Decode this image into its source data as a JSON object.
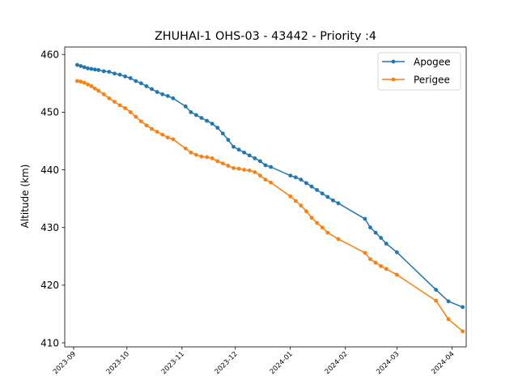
{
  "chart_data": {
    "type": "line",
    "title": "ZHUHAI-1 OHS-03 - 43442 - Priority :4",
    "xlabel": "",
    "ylabel": "Altitude (km)",
    "x_axis": {
      "type": "date",
      "range": [
        "2023-08-27",
        "2024-04-09"
      ],
      "ticks": [
        "2023-09",
        "2023-10",
        "2023-11",
        "2023-12",
        "2024-01",
        "2024-02",
        "2024-03",
        "2024-04"
      ]
    },
    "y_axis": {
      "range": [
        409.3,
        461.3
      ],
      "ticks": [
        410,
        420,
        430,
        440,
        450,
        460
      ]
    },
    "grid": false,
    "legend_position": "top-right",
    "series": [
      {
        "name": "Apogee",
        "color": "#1f77b4",
        "points": [
          [
            "2023-09-03",
            458.2
          ],
          [
            "2023-09-05",
            458.0
          ],
          [
            "2023-09-07",
            457.8
          ],
          [
            "2023-09-09",
            457.6
          ],
          [
            "2023-09-11",
            457.5
          ],
          [
            "2023-09-13",
            457.4
          ],
          [
            "2023-09-15",
            457.3
          ],
          [
            "2023-09-18",
            457.1
          ],
          [
            "2023-09-21",
            457.0
          ],
          [
            "2023-09-24",
            456.7
          ],
          [
            "2023-09-27",
            456.5
          ],
          [
            "2023-09-30",
            456.2
          ],
          [
            "2023-10-03",
            455.9
          ],
          [
            "2023-10-06",
            455.4
          ],
          [
            "2023-10-09",
            455.0
          ],
          [
            "2023-10-12",
            454.5
          ],
          [
            "2023-10-15",
            454.0
          ],
          [
            "2023-10-18",
            453.5
          ],
          [
            "2023-10-21",
            453.1
          ],
          [
            "2023-10-24",
            452.8
          ],
          [
            "2023-10-27",
            452.4
          ],
          [
            "2023-11-03",
            451.0
          ],
          [
            "2023-11-06",
            450.0
          ],
          [
            "2023-11-09",
            449.5
          ],
          [
            "2023-11-12",
            449.0
          ],
          [
            "2023-11-15",
            448.5
          ],
          [
            "2023-11-18",
            448.0
          ],
          [
            "2023-11-21",
            447.3
          ],
          [
            "2023-11-24",
            446.3
          ],
          [
            "2023-11-27",
            445.2
          ],
          [
            "2023-11-30",
            444.0
          ],
          [
            "2023-12-03",
            443.5
          ],
          [
            "2023-12-06",
            443.0
          ],
          [
            "2023-12-09",
            442.5
          ],
          [
            "2023-12-12",
            442.0
          ],
          [
            "2023-12-15",
            441.5
          ],
          [
            "2023-12-18",
            440.8
          ],
          [
            "2023-12-21",
            440.5
          ],
          [
            "2024-01-01",
            439.0
          ],
          [
            "2024-01-04",
            438.7
          ],
          [
            "2024-01-07",
            438.3
          ],
          [
            "2024-01-10",
            437.7
          ],
          [
            "2024-01-13",
            437.1
          ],
          [
            "2024-01-16",
            436.5
          ],
          [
            "2024-01-19",
            435.9
          ],
          [
            "2024-01-22",
            435.3
          ],
          [
            "2024-01-25",
            434.7
          ],
          [
            "2024-01-28",
            434.2
          ],
          [
            "2024-02-12",
            431.5
          ],
          [
            "2024-02-15",
            430.0
          ],
          [
            "2024-02-18",
            429.1
          ],
          [
            "2024-02-21",
            428.2
          ],
          [
            "2024-02-24",
            427.2
          ],
          [
            "2024-03-01",
            425.7
          ],
          [
            "2024-03-23",
            419.2
          ],
          [
            "2024-03-30",
            417.2
          ],
          [
            "2024-04-07",
            416.2
          ]
        ]
      },
      {
        "name": "Perigee",
        "color": "#ff7f0e",
        "points": [
          [
            "2023-09-03",
            455.4
          ],
          [
            "2023-09-05",
            455.3
          ],
          [
            "2023-09-07",
            455.1
          ],
          [
            "2023-09-09",
            454.8
          ],
          [
            "2023-09-11",
            454.5
          ],
          [
            "2023-09-13",
            454.1
          ],
          [
            "2023-09-15",
            453.7
          ],
          [
            "2023-09-18",
            453.1
          ],
          [
            "2023-09-21",
            452.4
          ],
          [
            "2023-09-24",
            451.8
          ],
          [
            "2023-09-27",
            451.2
          ],
          [
            "2023-09-30",
            450.7
          ],
          [
            "2023-10-03",
            450.0
          ],
          [
            "2023-10-06",
            449.2
          ],
          [
            "2023-10-09",
            448.4
          ],
          [
            "2023-10-12",
            447.7
          ],
          [
            "2023-10-15",
            447.1
          ],
          [
            "2023-10-18",
            446.6
          ],
          [
            "2023-10-21",
            446.1
          ],
          [
            "2023-10-24",
            445.6
          ],
          [
            "2023-10-27",
            445.3
          ],
          [
            "2023-11-03",
            443.7
          ],
          [
            "2023-11-06",
            443.0
          ],
          [
            "2023-11-09",
            442.6
          ],
          [
            "2023-11-12",
            442.3
          ],
          [
            "2023-11-15",
            442.2
          ],
          [
            "2023-11-18",
            442.0
          ],
          [
            "2023-11-21",
            441.5
          ],
          [
            "2023-11-24",
            441.1
          ],
          [
            "2023-11-27",
            440.7
          ],
          [
            "2023-11-30",
            440.3
          ],
          [
            "2023-12-03",
            440.2
          ],
          [
            "2023-12-06",
            440.0
          ],
          [
            "2023-12-09",
            439.9
          ],
          [
            "2023-12-12",
            439.6
          ],
          [
            "2023-12-15",
            439.0
          ],
          [
            "2023-12-18",
            438.3
          ],
          [
            "2023-12-21",
            437.8
          ],
          [
            "2024-01-01",
            435.4
          ],
          [
            "2024-01-04",
            434.6
          ],
          [
            "2024-01-07",
            433.8
          ],
          [
            "2024-01-10",
            432.8
          ],
          [
            "2024-01-13",
            431.7
          ],
          [
            "2024-01-16",
            430.8
          ],
          [
            "2024-01-19",
            430.0
          ],
          [
            "2024-01-22",
            429.1
          ],
          [
            "2024-01-28",
            428.0
          ],
          [
            "2024-02-12",
            425.6
          ],
          [
            "2024-02-15",
            424.5
          ],
          [
            "2024-02-18",
            423.9
          ],
          [
            "2024-02-21",
            423.3
          ],
          [
            "2024-02-24",
            422.8
          ],
          [
            "2024-03-01",
            421.8
          ],
          [
            "2024-03-23",
            417.3
          ],
          [
            "2024-03-30",
            414.1
          ],
          [
            "2024-04-07",
            412.0
          ]
        ]
      }
    ]
  }
}
